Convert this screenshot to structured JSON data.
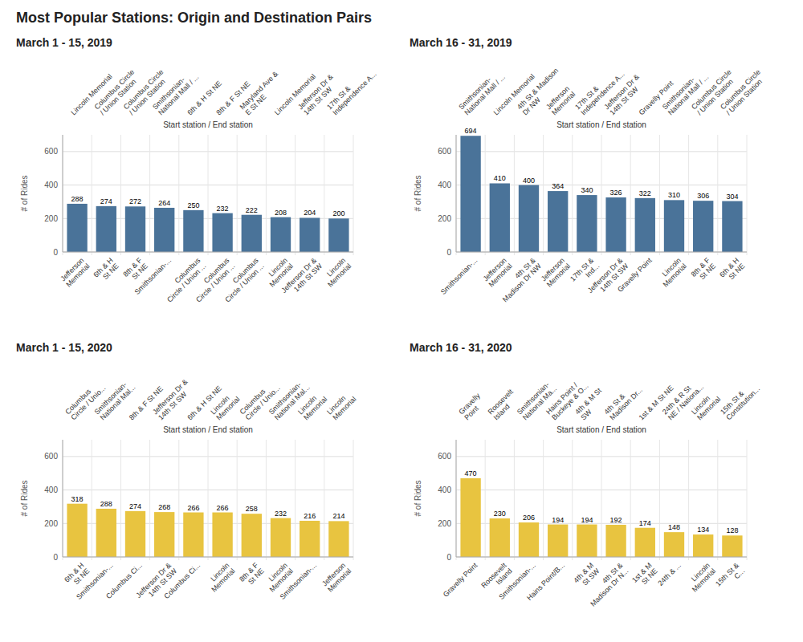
{
  "title": "Most Popular Stations: Origin and Destination Pairs",
  "chart_data": [
    {
      "type": "bar",
      "title": "March 1 - 15, 2019",
      "xlabel": "Start station / End station",
      "ylabel": "# of Rides",
      "categories": [
        "Lincoln Memorial",
        "Columbus Circle\n/ Union Station",
        "Columbus Circle\n/ Union Station",
        "Smithsonian-\nNational Mall / ...",
        "6th & H St NE",
        "8th & F St NE",
        "Maryland Ave &\nE St NE",
        "Lincoln Memorial",
        "Jefferson Dr &\n14th St SW",
        "17th St &\nIndependence A..."
      ],
      "end_categories": [
        "Jefferson\nMemorial",
        "6th & H\nSt NE",
        "8th & F\nSt NE",
        "Smithsonian-...",
        "Columbus\nCircle / Union ...",
        "Columbus\nCircle / Union ...",
        "Columbus\nCircle / Union ...",
        "Lincoln\nMemorial",
        "Jefferson Dr &\n14th St SW",
        "Lincoln\nMemorial"
      ],
      "values": [
        288,
        274,
        272,
        264,
        250,
        232,
        222,
        208,
        204,
        200
      ],
      "color": "#4a7399",
      "ylim": [
        0,
        700
      ],
      "yticks": [
        0,
        200,
        400,
        600
      ],
      "grid": true,
      "data_labels": true
    },
    {
      "type": "bar",
      "title": "March 16 - 31, 2019",
      "xlabel": "Start station / End station",
      "ylabel": "# of Rides",
      "categories": [
        "Smithsonian-\nNational Mall / ...",
        "Lincoln Memorial",
        "4th St & Madison\nDr NW",
        "Jefferson\nMemorial",
        "17th St &\nIndependence A...",
        "Jefferson Dr &\n14th St SW",
        "Gravelly Point",
        "Smithsonian-\nNational Mall / ...",
        "Columbus Circle\n/ Union Station",
        "Columbus Circle\n/ Union Station"
      ],
      "end_categories": [
        "Smithsonian-...",
        "Jefferson\nMemorial",
        "4th St &\nMadison Dr NW",
        "Jefferson\nMemorial",
        "17th St &\nInd...",
        "Jefferson Dr &\n14th St SW",
        "Gravelly Point",
        "Lincoln\nMemorial",
        "8th & F\nSt NE",
        "6th & H\nSt NE"
      ],
      "values": [
        694,
        410,
        400,
        364,
        340,
        326,
        322,
        310,
        306,
        304
      ],
      "color": "#4a7399",
      "ylim": [
        0,
        700
      ],
      "yticks": [
        0,
        200,
        400,
        600
      ],
      "grid": true,
      "data_labels": true
    },
    {
      "type": "bar",
      "title": "March 1 - 15, 2020",
      "xlabel": "Start station / End station",
      "ylabel": "# of Rides",
      "categories": [
        "Columbus\nCircle / Unio...",
        "Smithsonian-\nNational Mal...",
        "8th & F St NE",
        "Jefferson Dr &\n14th St SW",
        "6th & H St NE",
        "Lincoln\nMemorial",
        "Columbus\nCircle / Unio...",
        "Smithsonian-\nNational Mal...",
        "Lincoln\nMemorial",
        "Lincoln\nMemorial"
      ],
      "end_categories": [
        "6th & H\nSt NE",
        "Smithsonian-...",
        "Columbus Ci...",
        "Jefferson Dr &\n14th St SW",
        "Columbus Ci...",
        "Lincoln\nMemorial",
        "8th & F\nSt NE",
        "Lincoln\nMemorial",
        "Smithsonian-...",
        "Jefferson\nMemorial"
      ],
      "values": [
        318,
        288,
        274,
        268,
        266,
        266,
        258,
        232,
        216,
        214
      ],
      "color": "#e8c440",
      "ylim": [
        0,
        700
      ],
      "yticks": [
        0,
        200,
        400,
        600
      ],
      "grid": true,
      "data_labels": true
    },
    {
      "type": "bar",
      "title": "March 16 - 31, 2020",
      "xlabel": "Start station / End station",
      "ylabel": "# of Rides",
      "categories": [
        "Gravelly\nPoint",
        "Roosevelt\nIsland",
        "Smithsonian-\nNational Ma...",
        "Hains Point /\nBuckeye & O...",
        "4th & M St\nSW",
        "4th St &\nMadison Dr...",
        "1st & M St NE",
        "24th & R St\nNE / Nationa...",
        "Lincoln\nMemorial",
        "15th St &\nConstitution..."
      ],
      "end_categories": [
        "Gravelly Point",
        "Roosevelt\nIsland",
        "Smithsonian-...",
        "Hains Point/B...",
        "4th & M\nSt SW",
        "4th St &\nMadison Dr N...",
        "1st & M\nSt NE",
        "24th & ...",
        "Lincoln\nMemorial",
        "15th St &\nC..."
      ],
      "values": [
        470,
        230,
        206,
        194,
        194,
        192,
        174,
        148,
        134,
        128
      ],
      "color": "#e8c440",
      "ylim": [
        0,
        700
      ],
      "yticks": [
        0,
        200,
        400,
        600
      ],
      "grid": true,
      "data_labels": true
    }
  ]
}
